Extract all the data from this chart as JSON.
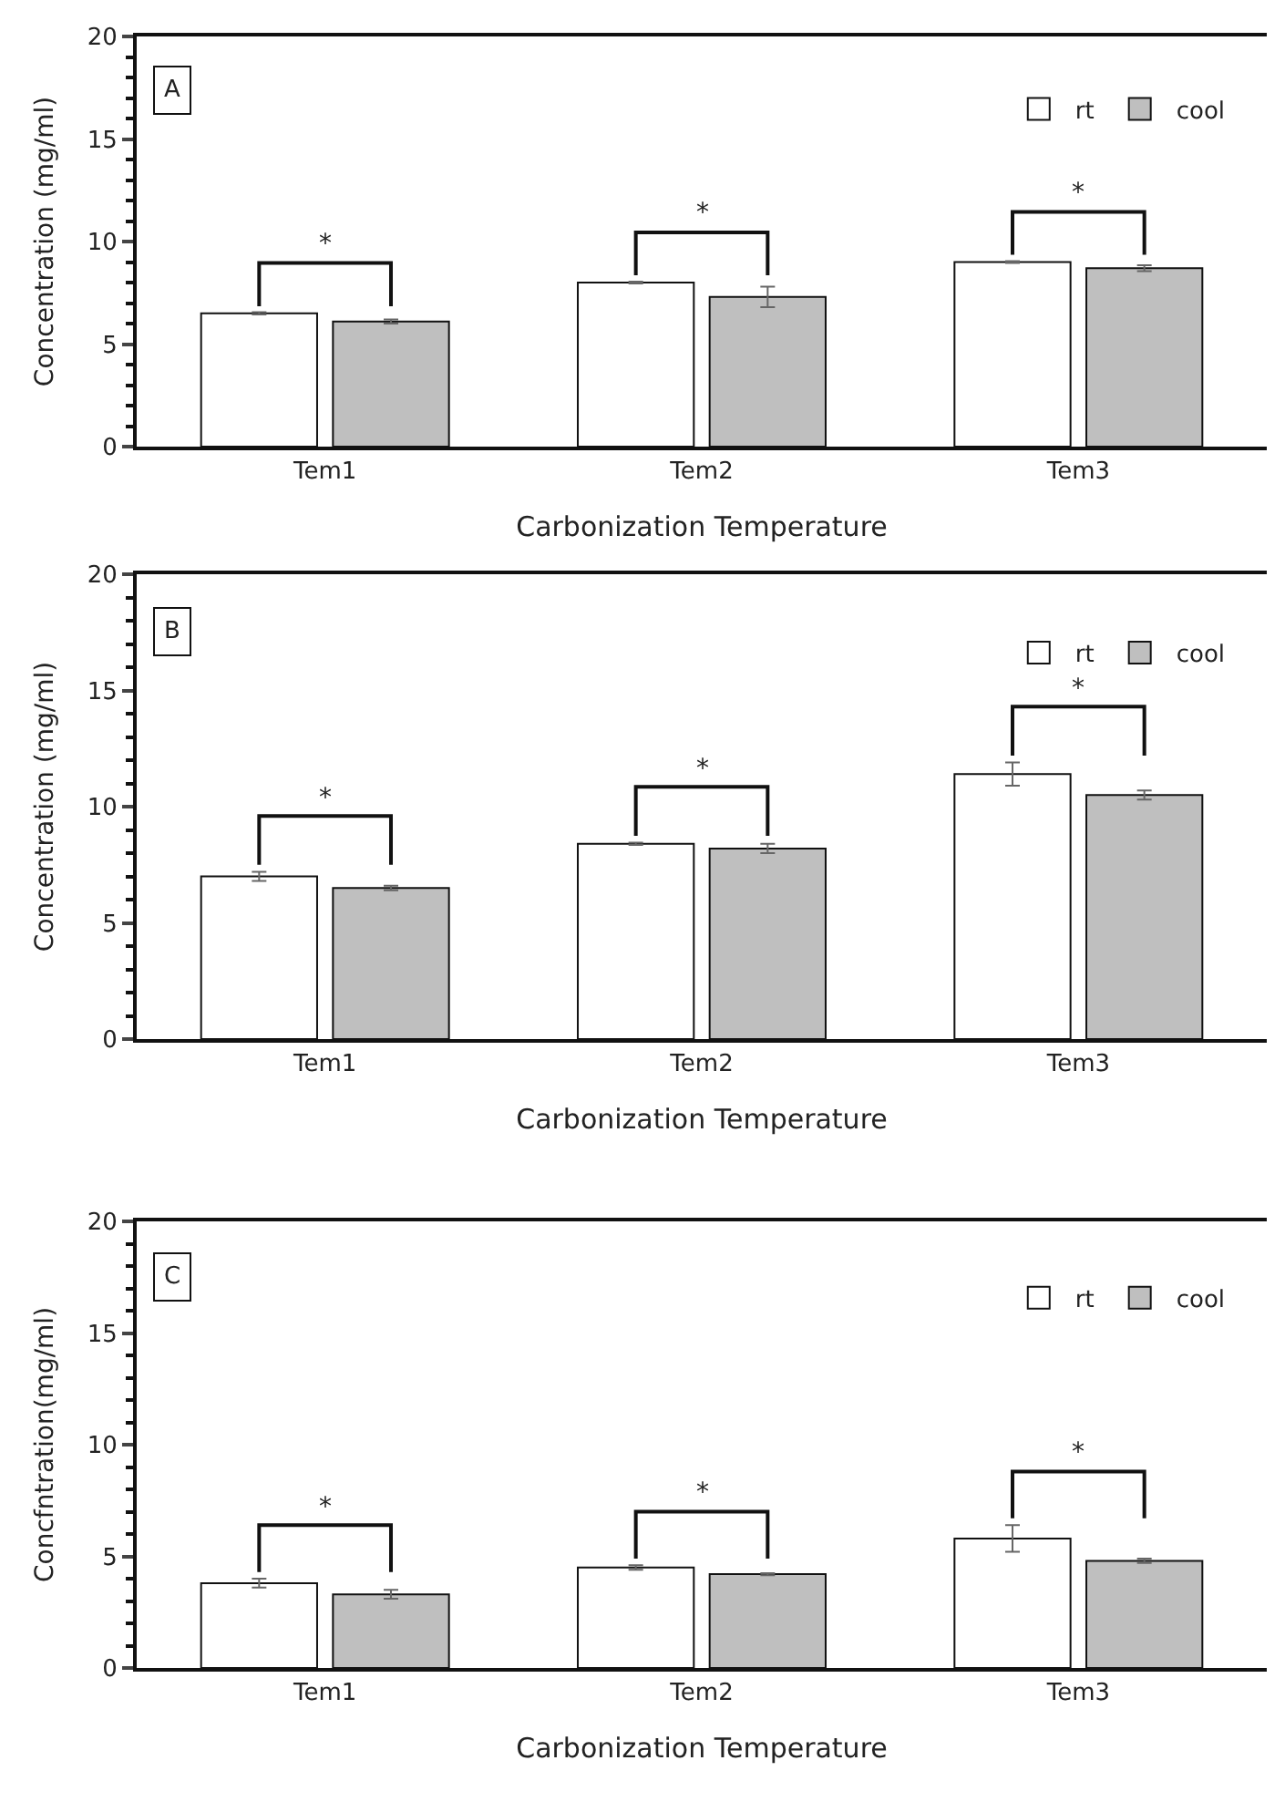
{
  "chart_data": [
    {
      "type": "bar",
      "xlabel": "Carbonization Temperature",
      "ylabel": "Concentration (mg/ml)",
      "categories": [
        "Tem1",
        "Tem2",
        "Tem3"
      ],
      "ylim": [
        0,
        20
      ],
      "yticks": [
        0,
        5,
        10,
        15,
        20
      ],
      "legend": "top right",
      "series": [
        {
          "name": "rt",
          "color": "#ffffff",
          "values": [
            6.5,
            8.0,
            9.0
          ],
          "errors": [
            0.05,
            0.05,
            0.05
          ]
        },
        {
          "name": "cool",
          "color": "#bfbfbf",
          "values": [
            6.1,
            7.3,
            8.7
          ],
          "errors": [
            0.1,
            0.5,
            0.15
          ]
        }
      ],
      "annotations": [
        "A",
        "*",
        "*",
        "*"
      ]
    },
    {
      "type": "bar",
      "xlabel": "Carbonization Temperature",
      "ylabel": "Concentration (mg/ml)",
      "categories": [
        "Tem1",
        "Tem2",
        "Tem3"
      ],
      "ylim": [
        0,
        20
      ],
      "yticks": [
        0,
        5,
        10,
        15,
        20
      ],
      "legend": "top right",
      "series": [
        {
          "name": "rt",
          "color": "#ffffff",
          "values": [
            7.0,
            8.4,
            11.4
          ],
          "errors": [
            0.2,
            0.05,
            0.5
          ]
        },
        {
          "name": "cool",
          "color": "#bfbfbf",
          "values": [
            6.5,
            8.2,
            10.5
          ],
          "errors": [
            0.1,
            0.2,
            0.2
          ]
        }
      ],
      "annotations": [
        "B",
        "*",
        "*",
        "*"
      ]
    },
    {
      "type": "bar",
      "xlabel": "Carbonization Temperature",
      "ylabel": "Concfntration(mg/ml)",
      "categories": [
        "Tem1",
        "Tem2",
        "Tem3"
      ],
      "ylim": [
        0,
        20
      ],
      "yticks": [
        0,
        5,
        10,
        15,
        20
      ],
      "legend": "top right",
      "series": [
        {
          "name": "rt",
          "color": "#ffffff",
          "values": [
            3.8,
            4.5,
            5.8
          ],
          "errors": [
            0.2,
            0.1,
            0.6
          ]
        },
        {
          "name": "cool",
          "color": "#bfbfbf",
          "values": [
            3.3,
            4.2,
            4.8
          ],
          "errors": [
            0.2,
            0.05,
            0.1
          ]
        }
      ],
      "annotations": [
        "C",
        "*",
        "*",
        "*"
      ]
    }
  ]
}
